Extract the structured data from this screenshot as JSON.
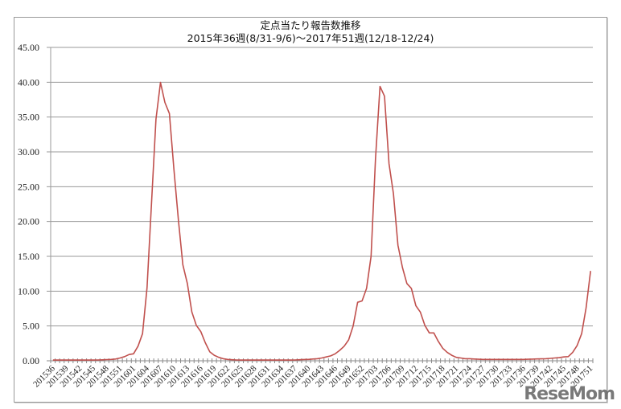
{
  "chart_data": {
    "type": "line",
    "title": "定点当たり報告数推移",
    "subtitle": "2015年36週(8/31-9/6)～2017年51週(12/18-12/24)",
    "xlabel": "",
    "ylabel": "",
    "ylim": [
      0,
      45
    ],
    "yticks": [
      "0.00",
      "5.00",
      "10.00",
      "15.00",
      "20.00",
      "25.00",
      "30.00",
      "35.00",
      "40.00",
      "45.00"
    ],
    "grid": true,
    "legend": null,
    "line_color": "#c0504d",
    "x_tick_labels": [
      "201536",
      "201539",
      "201542",
      "201545",
      "201548",
      "201551",
      "201601",
      "201604",
      "201607",
      "201610",
      "201613",
      "201616",
      "201619",
      "201622",
      "201625",
      "201628",
      "201631",
      "201634",
      "201637",
      "201640",
      "201643",
      "201646",
      "201649",
      "201652",
      "201703",
      "201706",
      "201709",
      "201712",
      "201715",
      "201718",
      "201721",
      "201724",
      "201727",
      "201730",
      "201733",
      "201736",
      "201739",
      "201742",
      "201745",
      "201748",
      "201751"
    ],
    "x_first_week": "201536",
    "x_last_week": "201751",
    "series": [
      {
        "name": "定点当たり報告数",
        "values": [
          0.1,
          0.1,
          0.1,
          0.1,
          0.1,
          0.1,
          0.1,
          0.1,
          0.1,
          0.1,
          0.12,
          0.14,
          0.17,
          0.2,
          0.25,
          0.4,
          0.6,
          0.9,
          1.0,
          2.1,
          3.9,
          10.5,
          22.5,
          34.7,
          39.97,
          37.1,
          35.5,
          27.5,
          20.2,
          13.8,
          11.1,
          7.0,
          5.1,
          4.2,
          2.6,
          1.3,
          0.8,
          0.5,
          0.3,
          0.2,
          0.15,
          0.12,
          0.1,
          0.1,
          0.1,
          0.1,
          0.1,
          0.1,
          0.1,
          0.1,
          0.1,
          0.1,
          0.1,
          0.1,
          0.12,
          0.15,
          0.18,
          0.2,
          0.25,
          0.3,
          0.4,
          0.55,
          0.7,
          1.0,
          1.5,
          2.1,
          3.0,
          5.0,
          8.4,
          8.6,
          10.4,
          15.0,
          29.0,
          39.4,
          38.0,
          28.3,
          24.0,
          16.6,
          13.4,
          11.1,
          10.4,
          7.9,
          7.0,
          5.1,
          4.0,
          4.0,
          2.8,
          1.8,
          1.2,
          0.8,
          0.5,
          0.4,
          0.3,
          0.3,
          0.25,
          0.22,
          0.2,
          0.2,
          0.2,
          0.2,
          0.2,
          0.2,
          0.2,
          0.2,
          0.2,
          0.2,
          0.22,
          0.24,
          0.26,
          0.28,
          0.3,
          0.35,
          0.4,
          0.45,
          0.55,
          0.6,
          1.2,
          2.2,
          3.9,
          7.6,
          12.9
        ]
      }
    ]
  },
  "watermark": "ReseMom"
}
